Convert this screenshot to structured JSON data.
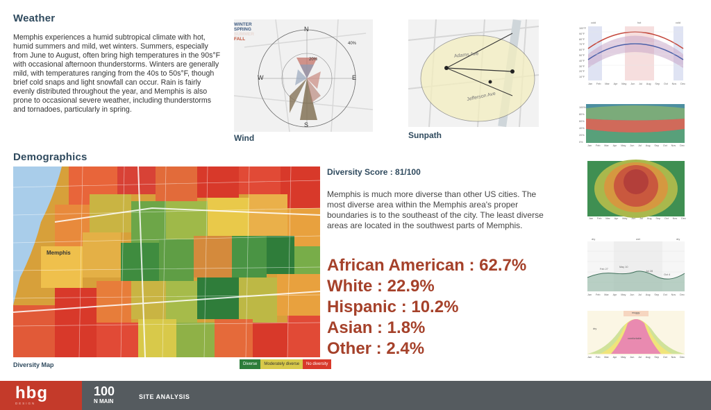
{
  "weather": {
    "title": "Weather",
    "text": "Memphis experiences a humid subtropical climate with hot, humid summers and mild, wet winters. Summers, especially from June to August, often bring high temperatures in the 90s°F with occasional afternoon thunderstorms. Winters are generally mild, with temperatures ranging from the 40s to 50s°F, though brief cold snaps and light snowfall can occur. Rain is fairly evenly distributed throughout the year, and Memphis is also prone to occasional severe weather, including thunderstorms and tornadoes, particularly in spring."
  },
  "wind": {
    "label": "Wind",
    "seasons": [
      "WINTER",
      "SPRING",
      "SUMMER",
      "FALL"
    ],
    "season_colors": [
      "#3d5a80",
      "#3d5a80",
      "#e8d9d4",
      "#c0533a"
    ],
    "directions": [
      "N",
      "E",
      "S",
      "W"
    ],
    "rings": [
      "20%",
      "40%"
    ]
  },
  "sunpath": {
    "label": "Sunpath",
    "street_labels": [
      "Adams Ave",
      "Jefferson Ave"
    ]
  },
  "climate_charts": {
    "month_labels": [
      "Jan",
      "Feb",
      "Mar",
      "Apr",
      "May",
      "Jun",
      "Jul",
      "Aug",
      "Sep",
      "Oct",
      "Nov",
      "Dec"
    ],
    "temperature": {
      "season_labels": [
        "cold",
        "hot",
        "cold"
      ],
      "ytick_labels": [
        "100°F",
        "90°F",
        "80°F",
        "70°F",
        "60°F",
        "50°F",
        "40°F",
        "30°F",
        "20°F",
        "10°F"
      ]
    },
    "humidity_pct_labels": [
      "100%",
      "80%",
      "60%",
      "40%",
      "20%",
      "0%"
    ],
    "daylight": {
      "season_labels": [
        "dry",
        "wet",
        "dry"
      ],
      "annotations": [
        "Feb 27",
        "May 10",
        "Jul 28",
        "Oct 4"
      ]
    },
    "comfort": {
      "labels": [
        "muggy",
        "comfortable",
        "dry"
      ]
    }
  },
  "demographics": {
    "title": "Demographics",
    "map_label": "Diversity Map",
    "map_place_label": "Memphis",
    "legend": [
      {
        "label": "Diverse",
        "color": "#2e7d3a"
      },
      {
        "label": "Moderately diverse",
        "color": "#d8c94a"
      },
      {
        "label": "No diversity",
        "color": "#d8392a"
      }
    ],
    "diversity_score": "Diversity Score : 81/100",
    "diversity_text": "Memphis is much more diverse than other US cities. The most diverse area within the Memphis area's proper boundaries is to the southeast of the city. The least diverse areas are located in the southwest parts of Memphis.",
    "stats": [
      "African American : 62.7%",
      "White : 22.9%",
      "Hispanic : 10.2%",
      "Asian : 1.8%",
      "Other : 2.4%"
    ]
  },
  "footer": {
    "logo": "hbg",
    "logo_sub": "DESIGN",
    "project_number": "100",
    "project_name": "N MAIN",
    "section": "SITE ANALYSIS"
  }
}
